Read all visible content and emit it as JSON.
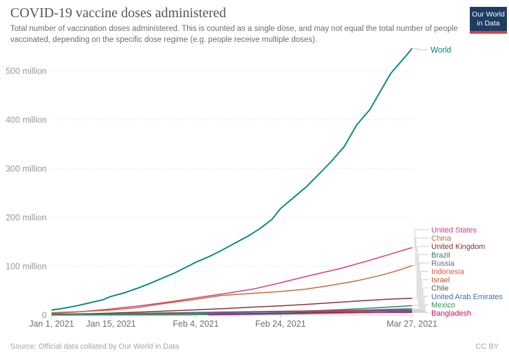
{
  "header": {
    "title": "COVID-19 vaccine doses administered",
    "subtitle": "Total number of vaccination doses administered. This is counted as a single dose, and may not equal the total number of people vaccinated, depending on the specific dose regime (e.g. people receive multiple doses).",
    "logo": {
      "line1": "Our World",
      "line2": "in Data",
      "bg_color": "#1d3d63",
      "stripe_color": "#d7403e"
    }
  },
  "footer": {
    "source": "Source: Official data collated by Our World in Data",
    "license": "CC BY"
  },
  "chart_data": {
    "type": "line",
    "title": "COVID-19 vaccine doses administered",
    "unit": "doses (millions)",
    "grid": "dashed-horizontal",
    "legend_position": "right-of-line-ends",
    "x_axis": {
      "kind": "date",
      "total_days": 85,
      "ticks": [
        {
          "label": "Jan 1, 2021",
          "day": 0
        },
        {
          "label": "Jan 15, 2021",
          "day": 14
        },
        {
          "label": "Feb 4, 2021",
          "day": 34
        },
        {
          "label": "Feb 24, 2021",
          "day": 54
        },
        {
          "label": "Mar 27, 2021",
          "day": 85
        }
      ]
    },
    "y_axis": {
      "ylim_millions": [
        0,
        560
      ],
      "ticks": [
        {
          "label": "0",
          "value": 0
        },
        {
          "label": "100 million",
          "value": 100
        },
        {
          "label": "200 million",
          "value": 200
        },
        {
          "label": "300 million",
          "value": 300
        },
        {
          "label": "400 million",
          "value": 400
        },
        {
          "label": "500 million",
          "value": 500
        }
      ]
    },
    "series": [
      {
        "name": "World",
        "color": "#00847e",
        "end_value_millions": 546,
        "inline_label": true,
        "points": [
          [
            0,
            10
          ],
          [
            3,
            14
          ],
          [
            6,
            19
          ],
          [
            9,
            25
          ],
          [
            12,
            31
          ],
          [
            14,
            38
          ],
          [
            17,
            45
          ],
          [
            20,
            54
          ],
          [
            23,
            64
          ],
          [
            26,
            75
          ],
          [
            29,
            86
          ],
          [
            32,
            99
          ],
          [
            34,
            108
          ],
          [
            37,
            119
          ],
          [
            40,
            132
          ],
          [
            43,
            146
          ],
          [
            46,
            160
          ],
          [
            49,
            176
          ],
          [
            52,
            196
          ],
          [
            54,
            218
          ],
          [
            57,
            240
          ],
          [
            60,
            262
          ],
          [
            63,
            288
          ],
          [
            66,
            315
          ],
          [
            69,
            345
          ],
          [
            72,
            390
          ],
          [
            75,
            420
          ],
          [
            78,
            465
          ],
          [
            80,
            495
          ],
          [
            82,
            515
          ],
          [
            84,
            535
          ],
          [
            85,
            546
          ]
        ]
      },
      {
        "name": "United States",
        "color": "#d73c7d",
        "end_value_millions": 138,
        "points": [
          [
            0,
            3
          ],
          [
            7,
            6.7
          ],
          [
            14,
            12.3
          ],
          [
            21,
            19
          ],
          [
            28,
            27
          ],
          [
            34,
            35
          ],
          [
            41,
            44
          ],
          [
            48,
            54
          ],
          [
            54,
            66
          ],
          [
            61,
            81
          ],
          [
            68,
            95
          ],
          [
            75,
            112
          ],
          [
            80,
            125
          ],
          [
            85,
            138
          ]
        ]
      },
      {
        "name": "China",
        "color": "#c76a38",
        "end_value_millions": 101,
        "points": [
          [
            0,
            4.5
          ],
          [
            7,
            7
          ],
          [
            14,
            10
          ],
          [
            20,
            15
          ],
          [
            27,
            24
          ],
          [
            34,
            32
          ],
          [
            40,
            40
          ],
          [
            47,
            44
          ],
          [
            54,
            48
          ],
          [
            60,
            53
          ],
          [
            66,
            61
          ],
          [
            72,
            70
          ],
          [
            78,
            82
          ],
          [
            82,
            92
          ],
          [
            85,
            101
          ]
        ]
      },
      {
        "name": "United Kingdom",
        "color": "#883039",
        "end_value_millions": 34.4,
        "points": [
          [
            0,
            1.4
          ],
          [
            7,
            2.4
          ],
          [
            14,
            3.8
          ],
          [
            21,
            5.9
          ],
          [
            28,
            8.4
          ],
          [
            34,
            10.5
          ],
          [
            41,
            13.3
          ],
          [
            48,
            16.4
          ],
          [
            54,
            18.7
          ],
          [
            61,
            22.2
          ],
          [
            68,
            26.2
          ],
          [
            75,
            30.2
          ],
          [
            80,
            32.6
          ],
          [
            85,
            34.4
          ]
        ]
      },
      {
        "name": "Brazil",
        "color": "#2c8465",
        "end_value_millions": 19.2,
        "points": [
          [
            16,
            0.1
          ],
          [
            20,
            0.8
          ],
          [
            27,
            2.0
          ],
          [
            34,
            2.9
          ],
          [
            41,
            4.8
          ],
          [
            48,
            6.1
          ],
          [
            54,
            6.9
          ],
          [
            61,
            8.4
          ],
          [
            68,
            10.8
          ],
          [
            75,
            13.9
          ],
          [
            80,
            16.4
          ],
          [
            85,
            19.2
          ]
        ]
      },
      {
        "name": "Russia",
        "color": "#6d5ba3",
        "end_value_millions": 12.9,
        "points": [
          [
            0,
            0.8
          ],
          [
            14,
            1.6
          ],
          [
            27,
            3.0
          ],
          [
            34,
            3.8
          ],
          [
            41,
            4.7
          ],
          [
            48,
            5.6
          ],
          [
            54,
            6.4
          ],
          [
            61,
            7.6
          ],
          [
            68,
            9.0
          ],
          [
            75,
            10.4
          ],
          [
            80,
            11.7
          ],
          [
            85,
            12.9
          ]
        ]
      },
      {
        "name": "Indonesia",
        "color": "#d9564f",
        "end_value_millions": 10.3,
        "points": [
          [
            13,
            0.1
          ],
          [
            20,
            0.9
          ],
          [
            27,
            1.6
          ],
          [
            34,
            2.0
          ],
          [
            41,
            2.4
          ],
          [
            48,
            2.9
          ],
          [
            54,
            3.4
          ],
          [
            61,
            4.6
          ],
          [
            68,
            6.0
          ],
          [
            75,
            7.6
          ],
          [
            80,
            9.0
          ],
          [
            85,
            10.3
          ]
        ]
      },
      {
        "name": "Israel",
        "color": "#bc4f27",
        "end_value_millions": 10.2,
        "points": [
          [
            0,
            1.0
          ],
          [
            7,
            1.8
          ],
          [
            14,
            2.6
          ],
          [
            21,
            3.5
          ],
          [
            28,
            4.5
          ],
          [
            34,
            5.2
          ],
          [
            41,
            6.2
          ],
          [
            48,
            7.0
          ],
          [
            54,
            7.7
          ],
          [
            61,
            8.4
          ],
          [
            68,
            9.0
          ],
          [
            75,
            9.5
          ],
          [
            80,
            9.9
          ],
          [
            85,
            10.2
          ]
        ]
      },
      {
        "name": "Chile",
        "color": "#58585a",
        "end_value_millions": 10.1,
        "points": [
          [
            0,
            0.06
          ],
          [
            14,
            0.1
          ],
          [
            27,
            0.2
          ],
          [
            33,
            0.6
          ],
          [
            36,
            1.5
          ],
          [
            41,
            2.4
          ],
          [
            48,
            3.1
          ],
          [
            54,
            3.9
          ],
          [
            61,
            5.1
          ],
          [
            68,
            6.6
          ],
          [
            75,
            8.1
          ],
          [
            80,
            9.2
          ],
          [
            85,
            10.1
          ]
        ]
      },
      {
        "name": "United Arab Emirates",
        "color": "#3d6fb0",
        "end_value_millions": 8.2,
        "points": [
          [
            0,
            0.9
          ],
          [
            7,
            1.4
          ],
          [
            14,
            2.0
          ],
          [
            21,
            2.9
          ],
          [
            28,
            3.8
          ],
          [
            34,
            4.5
          ],
          [
            41,
            5.3
          ],
          [
            48,
            5.9
          ],
          [
            54,
            6.3
          ],
          [
            61,
            6.9
          ],
          [
            68,
            7.3
          ],
          [
            75,
            7.7
          ],
          [
            80,
            8.0
          ],
          [
            85,
            8.2
          ]
        ]
      },
      {
        "name": "Mexico",
        "color": "#2e9656",
        "end_value_millions": 6.6,
        "points": [
          [
            0,
            0.06
          ],
          [
            7,
            0.3
          ],
          [
            14,
            0.5
          ],
          [
            21,
            0.65
          ],
          [
            28,
            0.7
          ],
          [
            34,
            0.8
          ],
          [
            41,
            1.1
          ],
          [
            48,
            1.6
          ],
          [
            54,
            2.1
          ],
          [
            61,
            2.9
          ],
          [
            68,
            3.9
          ],
          [
            75,
            5.0
          ],
          [
            80,
            5.9
          ],
          [
            85,
            6.6
          ]
        ]
      },
      {
        "name": "Bangladesh",
        "color": "#d10f66",
        "end_value_millions": 5.3,
        "points": [
          [
            37,
            0.1
          ],
          [
            40,
            0.6
          ],
          [
            44,
            1.3
          ],
          [
            48,
            2.0
          ],
          [
            54,
            2.9
          ],
          [
            61,
            3.8
          ],
          [
            68,
            4.5
          ],
          [
            75,
            5.0
          ],
          [
            80,
            5.2
          ],
          [
            85,
            5.3
          ]
        ]
      }
    ]
  }
}
